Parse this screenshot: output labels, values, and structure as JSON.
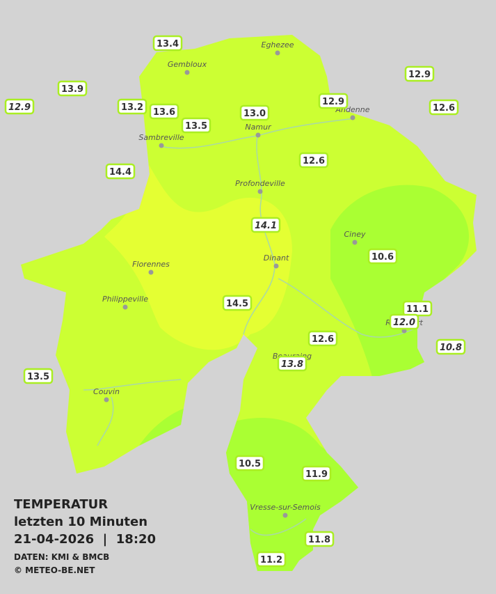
{
  "legend": {
    "title": "TEMPERATUR",
    "period": "letzten 10 Minuten",
    "datetime": "21-04-2026  |  18:20",
    "source": "DATEN: KMI & BMCB",
    "copyright": "© METEO-BE.NET"
  },
  "towns": [
    "Eghezee",
    "Gembloux",
    "Andenne",
    "Namur",
    "Sambreville",
    "Profondeville",
    "Ciney",
    "Dinant",
    "Florennes",
    "Philippeville",
    "Rochefort",
    "Beauraing",
    "Couvin",
    "Vresse-sur-Semois"
  ],
  "stations": [
    "13.4",
    "13.9",
    "12.9",
    "13.2",
    "13.6",
    "13.5",
    "13.0",
    "12.9",
    "12.9",
    "12.6",
    "14.4",
    "12.6",
    "14.1",
    "10.6",
    "14.5",
    "11.1",
    "12.0",
    "10.8",
    "12.6",
    "13.8",
    "13.5",
    "10.5",
    "11.9",
    "11.8",
    "11.2"
  ]
}
